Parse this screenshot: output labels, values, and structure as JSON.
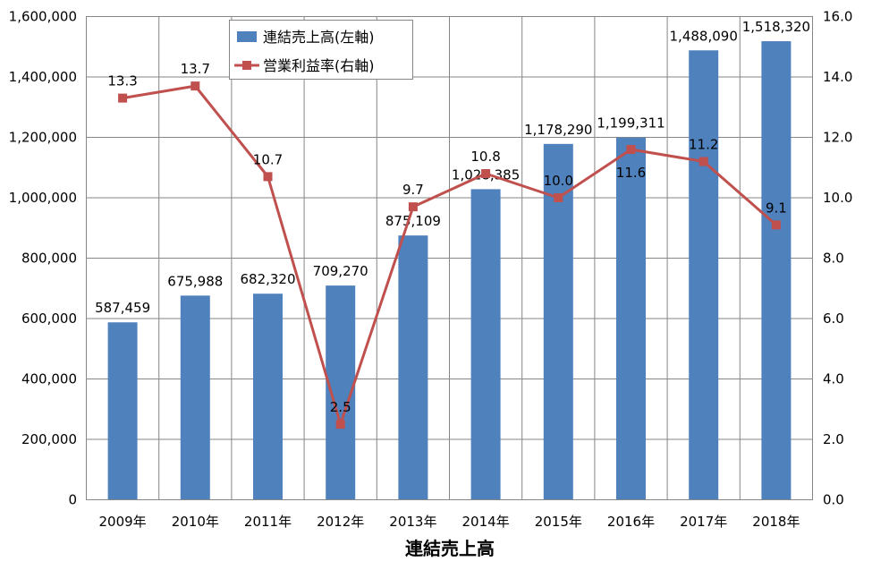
{
  "chart_data": {
    "type": "bar",
    "title": "",
    "xlabel": "連結売上高",
    "categories": [
      "2009年",
      "2010年",
      "2011年",
      "2012年",
      "2013年",
      "2014年",
      "2015年",
      "2016年",
      "2017年",
      "2018年"
    ],
    "series": [
      {
        "name": "連結売上高(左軸)",
        "type": "bar",
        "axis": "left",
        "color": "#4f81bd",
        "values": [
          587459,
          675988,
          682320,
          709270,
          875109,
          1028385,
          1178290,
          1199311,
          1488090,
          1518320
        ],
        "labels": [
          "587,459",
          "675,988",
          "682,320",
          "709,270",
          "875,109",
          "1,028,385",
          "1,178,290",
          "1,199,311",
          "1,488,090",
          "1,518,320"
        ]
      },
      {
        "name": "営業利益率(右軸)",
        "type": "line",
        "axis": "right",
        "color": "#c0504d",
        "values": [
          13.3,
          13.7,
          10.7,
          2.5,
          9.7,
          10.8,
          10.0,
          11.6,
          11.2,
          9.1
        ],
        "labels": [
          "13.3",
          "13.7",
          "10.7",
          "2.5",
          "9.7",
          "10.8",
          "10.0",
          "11.6",
          "11.2",
          "9.1"
        ]
      }
    ],
    "y_left": {
      "ylim": [
        0,
        1600000
      ],
      "ticks": [
        "0",
        "200,000",
        "400,000",
        "600,000",
        "800,000",
        "1,000,000",
        "1,200,000",
        "1,400,000",
        "1,600,000"
      ]
    },
    "y_right": {
      "ylim": [
        0,
        16
      ],
      "ticks": [
        "0.0",
        "2.0",
        "4.0",
        "6.0",
        "8.0",
        "10.0",
        "12.0",
        "14.0",
        "16.0"
      ]
    },
    "grid": true,
    "legend": "top-left"
  }
}
